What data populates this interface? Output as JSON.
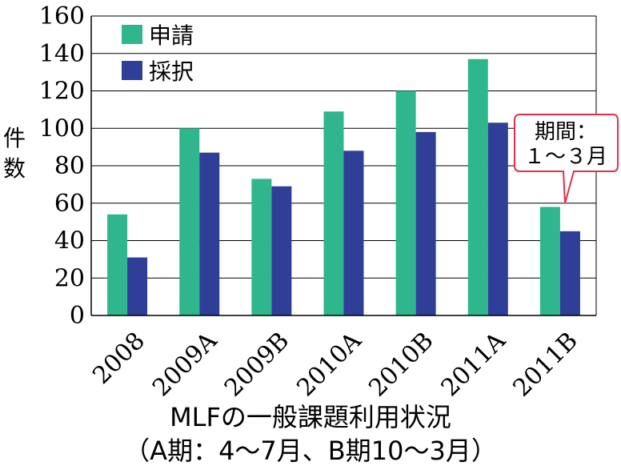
{
  "chart_data": {
    "type": "bar",
    "categories": [
      "2008",
      "2009A",
      "2009B",
      "2010A",
      "2010B",
      "2011A",
      "2011B"
    ],
    "series": [
      {
        "name": "申請",
        "color": "#2fb68c",
        "values": [
          54,
          100,
          73,
          109,
          120,
          137,
          58
        ]
      },
      {
        "name": "採択",
        "color": "#2f3e96",
        "values": [
          31,
          87,
          69,
          88,
          98,
          103,
          45
        ]
      }
    ],
    "ylabel": "件数",
    "ylim": [
      0,
      160
    ],
    "yticks": [
      0,
      20,
      40,
      60,
      80,
      100,
      120,
      140,
      160
    ],
    "grid": true,
    "legend_position": "top-left",
    "title_line1": "MLFの一般課題利用状況",
    "title_line2": "（A期：4～7月、B期10～3月）",
    "annotation": {
      "category": "2011B",
      "line1": "期間：",
      "line2": "１～３月"
    }
  }
}
